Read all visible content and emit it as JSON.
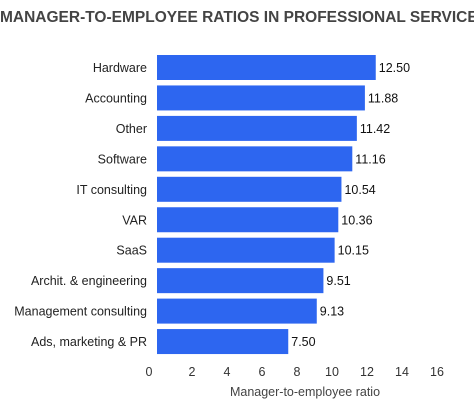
{
  "chart_data": {
    "type": "bar",
    "orientation": "horizontal",
    "title": "MANAGER-TO-EMPLOYEE RATIOS IN PROFESSIONAL SERVICES",
    "xlabel": "Manager-to-employee ratio",
    "ylabel": "",
    "xlim": [
      0,
      16
    ],
    "xticks": [
      0,
      2,
      4,
      6,
      8,
      10,
      12,
      14,
      16
    ],
    "grid": false,
    "bar_color": "#2d66f0",
    "categories": [
      "Hardware",
      "Accounting",
      "Other",
      "Software",
      "IT consulting",
      "VAR",
      "SaaS",
      "Archit. & engineering",
      "Management consulting",
      "Ads, marketing & PR"
    ],
    "values": [
      12.5,
      11.88,
      11.42,
      11.16,
      10.54,
      10.36,
      10.15,
      9.51,
      9.13,
      7.5
    ],
    "value_labels": [
      "12.50",
      "11.88",
      "11.42",
      "11.16",
      "10.54",
      "10.36",
      "10.15",
      "9.51",
      "9.13",
      "7.50"
    ]
  }
}
